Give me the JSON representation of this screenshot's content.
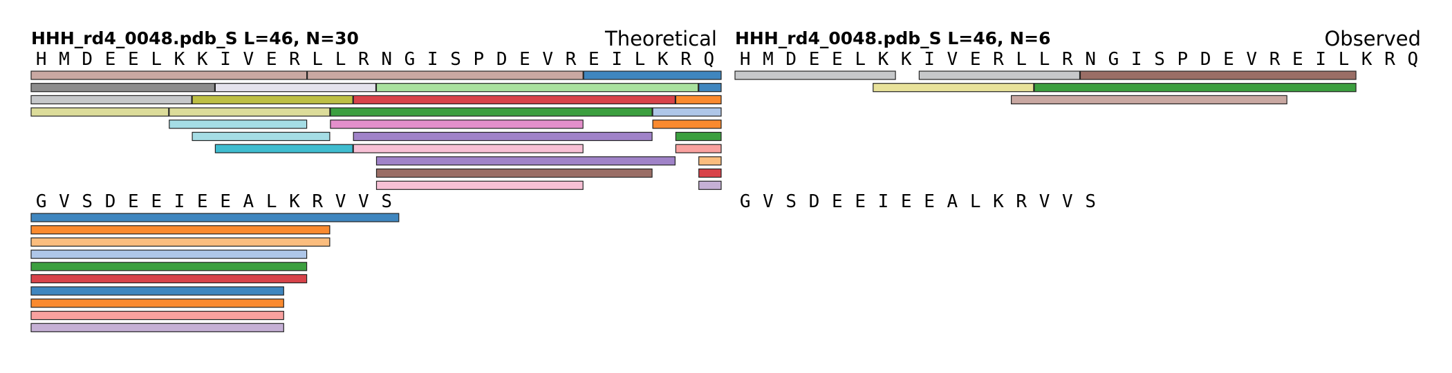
{
  "sequence": {
    "line1": "HMDEELKKIVERLLRNGISPDEVREILKRQ",
    "line2": "GVSDEEIEEALKRVVS"
  },
  "panels": [
    {
      "id": "theoretical",
      "title": "HHH_rd4_0048.pdb_S  L=46, N=30",
      "label": "Theoretical",
      "segments": [
        {
          "start": 1,
          "end": 12,
          "color": "#c9a8a2"
        },
        {
          "start": 13,
          "end": 24,
          "color": "#c9a8a2"
        },
        {
          "start": 25,
          "end": 30,
          "color": "#3f86bf"
        },
        {
          "start": 1,
          "end": 8,
          "color": "#8c8c8c"
        },
        {
          "start": 9,
          "end": 15,
          "color": "#e4e2ec"
        },
        {
          "start": 16,
          "end": 29,
          "color": "#a9e19e"
        },
        {
          "start": 30,
          "end": 30,
          "color": "#3f86bf"
        },
        {
          "start": 1,
          "end": 7,
          "color": "#c6c8ca"
        },
        {
          "start": 8,
          "end": 14,
          "color": "#bdbf45"
        },
        {
          "start": 15,
          "end": 28,
          "color": "#d8434a"
        },
        {
          "start": 29,
          "end": 30,
          "color": "#fa8a2f"
        },
        {
          "start": 1,
          "end": 6,
          "color": "#dcdc9a"
        },
        {
          "start": 7,
          "end": 13,
          "color": "#dcdc9a"
        },
        {
          "start": 14,
          "end": 27,
          "color": "#3c9f3f"
        },
        {
          "start": 28,
          "end": 30,
          "color": "#aec6e8"
        },
        {
          "start": 7,
          "end": 12,
          "color": "#a5dde5"
        },
        {
          "start": 14,
          "end": 24,
          "color": "#e38fcb"
        },
        {
          "start": 28,
          "end": 30,
          "color": "#fa8a2f"
        },
        {
          "start": 8,
          "end": 13,
          "color": "#a5dde5"
        },
        {
          "start": 15,
          "end": 27,
          "color": "#a083c8"
        },
        {
          "start": 29,
          "end": 30,
          "color": "#3c9f3f"
        },
        {
          "start": 9,
          "end": 14,
          "color": "#3fbccf"
        },
        {
          "start": 15,
          "end": 24,
          "color": "#f7c0d5"
        },
        {
          "start": 29,
          "end": 30,
          "color": "#f9a19f"
        },
        {
          "start": 16,
          "end": 28,
          "color": "#a083c8"
        },
        {
          "start": 30,
          "end": 30,
          "color": "#fbbd7e"
        },
        {
          "start": 16,
          "end": 27,
          "color": "#9a6e66"
        },
        {
          "start": 30,
          "end": 30,
          "color": "#d8434a"
        },
        {
          "start": 16,
          "end": 24,
          "color": "#f7c0d5"
        },
        {
          "start": 30,
          "end": 30,
          "color": "#c5b0d5"
        },
        {
          "start": 31,
          "end": 46,
          "color": "#3f86bf"
        },
        {
          "start": 31,
          "end": 43,
          "color": "#fa8a2f"
        },
        {
          "start": 31,
          "end": 43,
          "color": "#fbbd7e"
        },
        {
          "start": 31,
          "end": 42,
          "color": "#aec6e8"
        },
        {
          "start": 31,
          "end": 42,
          "color": "#3c9f3f"
        },
        {
          "start": 31,
          "end": 42,
          "color": "#d8434a"
        },
        {
          "start": 31,
          "end": 41,
          "color": "#3f86bf"
        },
        {
          "start": 31,
          "end": 41,
          "color": "#fa8a2f"
        },
        {
          "start": 31,
          "end": 41,
          "color": "#f9a19f"
        },
        {
          "start": 31,
          "end": 41,
          "color": "#c5b0d5"
        }
      ]
    },
    {
      "id": "observed",
      "title": "HHH_rd4_0048.pdb_S  L=46, N=6",
      "label": "Observed",
      "segments": [
        {
          "start": 1,
          "end": 7,
          "color": "#c6c8ca"
        },
        {
          "start": 9,
          "end": 15,
          "color": "#c6c8ca"
        },
        {
          "start": 16,
          "end": 27,
          "color": "#9a6e66"
        },
        {
          "start": 7,
          "end": 13,
          "color": "#e8e29a"
        },
        {
          "start": 14,
          "end": 27,
          "color": "#3c9f3f"
        },
        {
          "start": 13,
          "end": 24,
          "color": "#c9a8a2"
        }
      ]
    }
  ]
}
